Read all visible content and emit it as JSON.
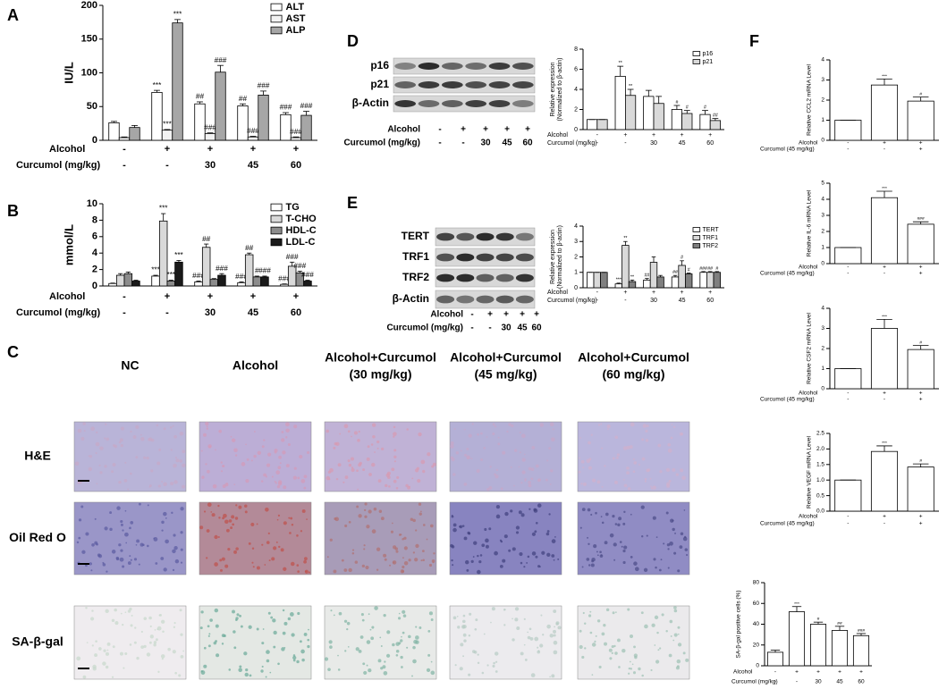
{
  "chart_data": [
    {
      "type": "bar",
      "panel": "A",
      "ylabel": [
        "IU/L"
      ],
      "ylim": [
        0,
        200
      ],
      "yticks": [
        0,
        50,
        100,
        150,
        200
      ],
      "series": [
        {
          "name": "ALT",
          "color": "#ffffff",
          "values": [
            26,
            71,
            54,
            51,
            38
          ],
          "errors": [
            2,
            3,
            3,
            3,
            3
          ],
          "annotations": [
            null,
            "***",
            "##",
            "##",
            "###"
          ]
        },
        {
          "name": "AST",
          "color": "#f2f2f2",
          "values": [
            4,
            15,
            10,
            5,
            4
          ],
          "errors": [
            1,
            1,
            1,
            1,
            1
          ],
          "annotations": [
            null,
            "***",
            "###",
            "###",
            "###"
          ]
        },
        {
          "name": "ALP",
          "color": "#a6a6a6",
          "values": [
            19,
            174,
            101,
            67,
            37
          ],
          "errors": [
            3,
            5,
            10,
            6,
            6
          ],
          "annotations": [
            null,
            "***",
            "###",
            "###",
            "###"
          ]
        }
      ],
      "conditions": [
        {
          "label": "Alcohol",
          "values": [
            "-",
            "+",
            "+",
            "+",
            "+"
          ]
        },
        {
          "label": "Curcumol (mg/kg)",
          "values": [
            "-",
            "-",
            "30",
            "45",
            "60"
          ]
        }
      ]
    },
    {
      "type": "bar",
      "panel": "B",
      "ylabel": [
        "mmol/L"
      ],
      "ylim": [
        0,
        10
      ],
      "yticks": [
        0,
        2,
        4,
        6,
        8,
        10
      ],
      "series": [
        {
          "name": "TG",
          "color": "#ffffff",
          "values": [
            0.3,
            1.2,
            0.5,
            0.4,
            0.2
          ],
          "errors": [
            0.05,
            0.1,
            0.1,
            0.1,
            0.05
          ],
          "annotations": [
            null,
            "***",
            "###",
            "###",
            "###"
          ]
        },
        {
          "name": "T-CHO",
          "color": "#d9d9d9",
          "values": [
            1.3,
            7.9,
            4.7,
            3.8,
            2.4
          ],
          "errors": [
            0.2,
            0.9,
            0.4,
            0.2,
            0.5
          ],
          "annotations": [
            null,
            "***",
            "##",
            "##",
            "###"
          ]
        },
        {
          "name": "HDL-C",
          "color": "#8c8c8c",
          "values": [
            1.5,
            0.6,
            0.8,
            1.1,
            1.6
          ],
          "errors": [
            0.2,
            0.1,
            0.1,
            0.1,
            0.2
          ],
          "annotations": [
            null,
            "***",
            null,
            "#",
            "###"
          ]
        },
        {
          "name": "LDL-C",
          "color": "#1a1a1a",
          "values": [
            0.6,
            2.9,
            1.3,
            1.1,
            0.6
          ],
          "errors": [
            0.1,
            0.2,
            0.2,
            0.1,
            0.1
          ],
          "annotations": [
            null,
            "***",
            "###",
            "###",
            "###"
          ]
        }
      ],
      "conditions": [
        {
          "label": "Alcohol",
          "values": [
            "-",
            "+",
            "+",
            "+",
            "+"
          ]
        },
        {
          "label": "Curcumol (mg/kg)",
          "values": [
            "-",
            "-",
            "30",
            "45",
            "60"
          ]
        }
      ]
    },
    {
      "type": "bar",
      "ylabel": [
        "Relative expression",
        "(Normalized to β-actin)"
      ],
      "ylim": [
        0,
        8
      ],
      "yticks": [
        0,
        2,
        4,
        6,
        8
      ],
      "series": [
        {
          "name": "p16",
          "color": "#ffffff",
          "values": [
            1,
            5.3,
            3.3,
            2.0,
            1.5
          ],
          "errors": [
            0,
            1.0,
            0.6,
            0.4,
            0.4
          ],
          "annotations": [
            null,
            "**",
            null,
            "#",
            "#"
          ]
        },
        {
          "name": "p21",
          "color": "#d9d9d9",
          "values": [
            1,
            3.4,
            2.6,
            1.6,
            0.9
          ],
          "errors": [
            0,
            0.6,
            0.7,
            0.3,
            0.2
          ],
          "annotations": [
            null,
            "**",
            null,
            "#",
            "##"
          ]
        }
      ],
      "conditions": [
        {
          "label": "Alcohol",
          "values": [
            "-",
            "+",
            "+",
            "+",
            "+"
          ]
        },
        {
          "label": "Curcumol (mg/kg)",
          "values": [
            "-",
            "-",
            "30",
            "45",
            "60"
          ]
        }
      ]
    },
    {
      "type": "bar",
      "ylabel": [
        "Relative expression",
        "(Normalized to β-actin)"
      ],
      "ylim": [
        0,
        4
      ],
      "yticks": [
        0,
        1,
        2,
        3,
        4
      ],
      "series": [
        {
          "name": "TERT",
          "color": "#ffffff",
          "values": [
            1,
            0.25,
            0.5,
            0.7,
            1.0
          ],
          "errors": [
            0,
            0.05,
            0.1,
            0.1,
            0.05
          ],
          "annotations": [
            null,
            "***",
            "##",
            "##",
            "###"
          ]
        },
        {
          "name": "TRF1",
          "color": "#d9d9d9",
          "values": [
            1,
            2.75,
            1.65,
            1.45,
            1.0
          ],
          "errors": [
            0,
            0.25,
            0.35,
            0.3,
            0.05
          ],
          "annotations": [
            null,
            "**",
            null,
            "#",
            "##"
          ]
        },
        {
          "name": "TRF2",
          "color": "#7f7f7f",
          "values": [
            1,
            0.4,
            0.7,
            0.9,
            1.0
          ],
          "errors": [
            0,
            0.1,
            0.1,
            0.05,
            0.05
          ],
          "annotations": [
            null,
            "**",
            null,
            "#",
            "#"
          ]
        }
      ],
      "conditions": [
        {
          "label": "Alcohol",
          "values": [
            "-",
            "+",
            "+",
            "+",
            "+"
          ]
        },
        {
          "label": "Curcumol (mg/kg)",
          "values": [
            "-",
            "-",
            "30",
            "45",
            "60"
          ]
        }
      ]
    },
    {
      "type": "bar",
      "panel": "F",
      "ylabel": [
        "Relative CCL2 mRNA Level"
      ],
      "ylim": [
        0,
        4
      ],
      "yticks": [
        0,
        1,
        2,
        3,
        4
      ],
      "series": [
        {
          "name": null,
          "color": "#ffffff",
          "values": [
            1,
            2.75,
            1.95
          ],
          "errors": [
            0,
            0.3,
            0.2
          ],
          "annotations": [
            null,
            "***",
            "#"
          ]
        }
      ],
      "conditions": [
        {
          "label": "Alcohol",
          "values": [
            "-",
            "+",
            "+"
          ]
        },
        {
          "label": "Curcumol (45 mg/kg)",
          "values": [
            "-",
            "-",
            "+"
          ]
        }
      ]
    },
    {
      "type": "bar",
      "ylabel": [
        "Relative IL-6 mRNA Level"
      ],
      "ylim": [
        0,
        5
      ],
      "yticks": [
        0,
        1,
        2,
        3,
        4,
        5
      ],
      "series": [
        {
          "name": null,
          "color": "#ffffff",
          "values": [
            1,
            4.1,
            2.45
          ],
          "errors": [
            0,
            0.4,
            0.15
          ],
          "annotations": [
            null,
            "***",
            "###"
          ]
        }
      ],
      "conditions": [
        {
          "label": "Alcohol",
          "values": [
            "-",
            "+",
            "+"
          ]
        },
        {
          "label": "Curcumol (45 mg/kg)",
          "values": [
            "-",
            "-",
            "+"
          ]
        }
      ]
    },
    {
      "type": "bar",
      "ylabel": [
        "Relative CSF2 mRNA Level"
      ],
      "ylim": [
        0,
        4
      ],
      "yticks": [
        0,
        1,
        2,
        3,
        4
      ],
      "series": [
        {
          "name": null,
          "color": "#ffffff",
          "values": [
            1,
            3.0,
            1.95
          ],
          "errors": [
            0,
            0.45,
            0.2
          ],
          "annotations": [
            null,
            "***",
            "#"
          ]
        }
      ],
      "conditions": [
        {
          "label": "Alcohol",
          "values": [
            "-",
            "+",
            "+"
          ]
        },
        {
          "label": "Curcumol (45 mg/kg)",
          "values": [
            "-",
            "-",
            "+"
          ]
        }
      ]
    },
    {
      "type": "bar",
      "ylabel": [
        "Relative VEGF mRNA Level"
      ],
      "ylim": [
        0,
        2.5
      ],
      "yticks": [
        {
          "value": 0,
          "label": "0.0"
        },
        {
          "value": 0.5,
          "label": "0.5"
        },
        {
          "value": 1,
          "label": "1.0"
        },
        {
          "value": 1.5,
          "label": "1.5"
        },
        {
          "value": 2,
          "label": "2.0"
        },
        {
          "value": 2.5,
          "label": "2.5"
        }
      ],
      "series": [
        {
          "name": null,
          "color": "#ffffff",
          "values": [
            1,
            1.92,
            1.42
          ],
          "errors": [
            0,
            0.18,
            0.1
          ],
          "annotations": [
            null,
            "***",
            "#"
          ]
        }
      ],
      "conditions": [
        {
          "label": "Alcohol",
          "values": [
            "-",
            "+",
            "+"
          ]
        },
        {
          "label": "Curcumol (45 mg/kg)",
          "values": [
            "-",
            "-",
            "+"
          ]
        }
      ]
    },
    {
      "type": "bar",
      "ylabel": [
        "SA-β-gal positive cells (%)"
      ],
      "ylim": [
        0,
        80
      ],
      "yticks": [
        0,
        20,
        40,
        60,
        80
      ],
      "series": [
        {
          "name": null,
          "color": "#ffffff",
          "values": [
            13,
            52,
            40,
            34,
            29
          ],
          "errors": [
            2,
            5,
            2,
            4,
            2
          ],
          "annotations": [
            null,
            "***",
            "#",
            "##",
            "###"
          ]
        }
      ],
      "conditions": [
        {
          "label": "Alcohol",
          "values": [
            "-",
            "+",
            "+",
            "+",
            "+"
          ]
        },
        {
          "label": "Curcumol (mg/kg)",
          "values": [
            "-",
            "-",
            "30",
            "45",
            "60"
          ]
        }
      ]
    }
  ],
  "blots": [
    {
      "panel": "D",
      "rows": [
        "p16",
        "p21",
        "β-Actin"
      ],
      "conditions": [
        {
          "label": "Alcohol",
          "values": [
            "-",
            "+",
            "+",
            "+",
            "+"
          ]
        },
        {
          "label": "Curcumol (mg/kg)",
          "values": [
            "-",
            "-",
            "30",
            "45",
            "60"
          ]
        }
      ]
    },
    {
      "panel": "E",
      "rows": [
        "TERT",
        "TRF1",
        "TRF2",
        "β-Actin"
      ],
      "conditions": [
        {
          "label": "Alcohol",
          "values": [
            "-",
            "+",
            "+",
            "+",
            "+"
          ]
        },
        {
          "label": "Curcumol (mg/kg)",
          "values": [
            "-",
            "-",
            "30",
            "45",
            "60"
          ]
        }
      ]
    }
  ],
  "histology": {
    "panel": "C",
    "columns": [
      [
        "NC"
      ],
      [
        "Alcohol"
      ],
      [
        "Alcohol+Curcumol",
        "(30 mg/kg)"
      ],
      [
        "Alcohol+Curcumol",
        "(45 mg/kg)"
      ],
      [
        "Alcohol+Curcumol",
        "(60 mg/kg)"
      ]
    ],
    "rows": [
      "H&E",
      "Oil Red O",
      "SA-β-gal"
    ]
  }
}
